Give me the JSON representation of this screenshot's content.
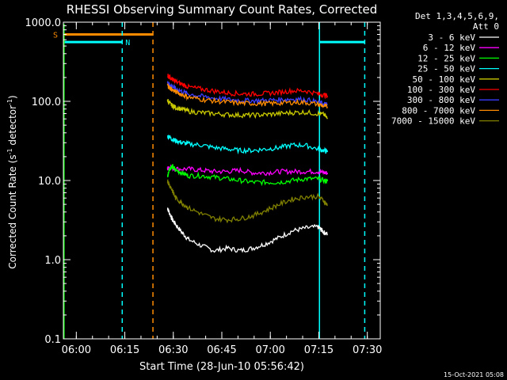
{
  "chart_data": {
    "type": "line",
    "title": "RHESSI Observing Summary Count Rates, Corrected",
    "xlabel": "Start Time (28-Jun-10 05:56:42)",
    "ylabel_main": "Corrected Count Rate (s",
    "ylabel_sup1": "-1",
    "ylabel_mid": " detector",
    "ylabel_sup2": "-1",
    "ylabel_end": ")",
    "yscale": "log",
    "ylim": [
      0.1,
      1000.0
    ],
    "yticks": [
      {
        "value": 0.1,
        "label": "0.1"
      },
      {
        "value": 1,
        "label": "1.0"
      },
      {
        "value": 10,
        "label": "10.0"
      },
      {
        "value": 100,
        "label": "100.0"
      },
      {
        "value": 1000,
        "label": "1000.0"
      }
    ],
    "x_unit": "minutes after 05:56:42",
    "xlim": [
      -0.7,
      97.3
    ],
    "xticks": [
      {
        "value": 3.3,
        "label": "06:00"
      },
      {
        "value": 18.3,
        "label": "06:15"
      },
      {
        "value": 33.3,
        "label": "06:30"
      },
      {
        "value": 48.3,
        "label": "06:45"
      },
      {
        "value": 63.3,
        "label": "07:00"
      },
      {
        "value": 78.3,
        "label": "07:15"
      },
      {
        "value": 93.3,
        "label": "07:30"
      }
    ],
    "legend_placement": "top-right",
    "legend_header": [
      "Det 1,3,4,5,6,9,",
      "Att 0"
    ],
    "series": [
      {
        "name": "3 - 6 keV",
        "color": "#ffffff",
        "x": [
          31.5,
          32,
          33,
          34,
          36,
          38,
          42,
          46,
          50,
          54,
          58,
          62,
          66,
          70,
          74,
          78,
          79,
          80,
          81
        ],
        "y": [
          4.5,
          4,
          3.2,
          2.8,
          2.2,
          1.8,
          1.5,
          1.3,
          1.4,
          1.3,
          1.4,
          1.6,
          1.9,
          2.3,
          2.5,
          2.6,
          2.4,
          2.2,
          2.1
        ]
      },
      {
        "name": "6 - 12 keV",
        "color": "#ff00ff",
        "x": [
          31.5,
          32,
          34,
          38,
          42,
          46,
          50,
          54,
          58,
          62,
          66,
          70,
          74,
          78,
          80,
          81
        ],
        "y": [
          14,
          15,
          14,
          14,
          13.5,
          13,
          13,
          13.5,
          12.5,
          12.5,
          13,
          13,
          13,
          13,
          12.5,
          12.5
        ]
      },
      {
        "name": "12 - 25 keV",
        "color": "#00ff00",
        "x": [
          31.5,
          32,
          33,
          34,
          36,
          38,
          42,
          46,
          50,
          54,
          58,
          62,
          66,
          70,
          74,
          78,
          80,
          81
        ],
        "y": [
          11,
          14,
          15,
          13.5,
          12.5,
          11.5,
          11.5,
          11,
          10.5,
          10,
          9.5,
          9.5,
          9.5,
          10,
          10.5,
          10.5,
          10,
          9.8
        ]
      },
      {
        "name": "25 - 50 keV",
        "color": "#00ffff",
        "x": [
          31.5,
          32,
          33,
          34,
          36,
          38,
          42,
          46,
          50,
          54,
          58,
          62,
          66,
          70,
          74,
          78,
          80,
          81
        ],
        "y": [
          36,
          36,
          33,
          32,
          30,
          29,
          28,
          26,
          25,
          24,
          24,
          25,
          26,
          28,
          28,
          25,
          24,
          23
        ]
      },
      {
        "name": "50 - 100 keV",
        "color": "#c8c800",
        "x": [
          31.5,
          32,
          33,
          34,
          36,
          38,
          42,
          46,
          50,
          54,
          58,
          62,
          66,
          70,
          74,
          78,
          80,
          81
        ],
        "y": [
          105,
          95,
          88,
          84,
          80,
          75,
          72,
          70,
          68,
          67,
          67,
          68,
          70,
          72,
          73,
          70,
          68,
          60
        ]
      },
      {
        "name": "100 - 300 keV",
        "color": "#ff0000",
        "x": [
          31.5,
          32,
          33,
          34,
          36,
          38,
          42,
          46,
          50,
          54,
          58,
          62,
          66,
          70,
          74,
          78,
          80,
          81
        ],
        "y": [
          215,
          205,
          190,
          178,
          165,
          152,
          143,
          135,
          128,
          125,
          124,
          126,
          130,
          136,
          136,
          125,
          120,
          118
        ]
      },
      {
        "name": "300 - 800 keV",
        "color": "#3c3cff",
        "x": [
          31.5,
          32,
          33,
          34,
          36,
          38,
          42,
          46,
          50,
          54,
          58,
          62,
          66,
          70,
          74,
          78,
          80,
          81
        ],
        "y": [
          172,
          165,
          155,
          145,
          133,
          124,
          116,
          110,
          106,
          103,
          102,
          103,
          105,
          107,
          106,
          98,
          92,
          90
        ]
      },
      {
        "name": "800 - 7000 keV",
        "color": "#ff8c00",
        "x": [
          31.5,
          32,
          33,
          34,
          36,
          38,
          42,
          46,
          50,
          54,
          58,
          62,
          66,
          70,
          74,
          78,
          80,
          81
        ],
        "y": [
          160,
          150,
          140,
          132,
          122,
          113,
          106,
          101,
          98,
          95,
          94,
          94,
          95,
          97,
          97,
          92,
          87,
          85
        ]
      },
      {
        "name": "7000 - 15000 keV",
        "color": "#808000",
        "x": [
          31.5,
          32,
          33,
          34,
          36,
          38,
          42,
          46,
          50,
          54,
          58,
          62,
          66,
          70,
          74,
          78,
          80,
          81
        ],
        "y": [
          10,
          9,
          7.5,
          6,
          5.2,
          4.5,
          3.8,
          3.3,
          3.2,
          3.3,
          3.6,
          4.2,
          5,
          5.8,
          6.2,
          6.3,
          5.5,
          4.8
        ]
      }
    ],
    "state_bars": [
      {
        "label": "S",
        "color": "#ff8c00",
        "y": 700,
        "x": [
          -0.7,
          27
        ]
      },
      {
        "label": "N",
        "color": "#00ffff",
        "y": 560,
        "x": [
          -0.7,
          17.5
        ]
      },
      {
        "label": "",
        "color": "#00ffff",
        "y": 560,
        "x": [
          78.5,
          92.5
        ]
      }
    ],
    "vertical_lines": [
      {
        "x": 17.5,
        "color": "#00ffff",
        "dashed": true
      },
      {
        "x": 27,
        "color": "#ff8c00",
        "dashed": true
      },
      {
        "x": 78.5,
        "color": "#00ffff",
        "dashed": false
      },
      {
        "x": 92.5,
        "color": "#00ffff",
        "dashed": true
      }
    ],
    "footer_date": "15-Oct-2021 05:08"
  }
}
